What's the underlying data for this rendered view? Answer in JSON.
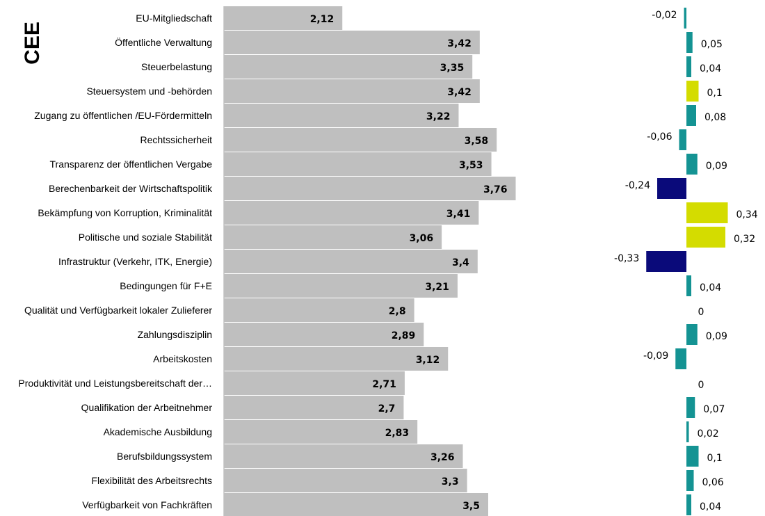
{
  "side_title": "CEE",
  "chart_data": [
    {
      "type": "bar",
      "orientation": "horizontal",
      "categories": [
        "EU-Mitgliedschaft",
        "Öffentliche Verwaltung",
        "Steuerbelastung",
        "Steuersystem und -behörden",
        "Zugang zu öffentlichen /EU-Fördermitteln",
        "Rechtssicherheit",
        "Transparenz der öffentlichen Vergabe",
        "Berechenbarkeit der Wirtschaftspolitik",
        "Bekämpfung von Korruption, Kriminalität",
        "Politische und soziale Stabilität",
        "Infrastruktur (Verkehr, ITK, Energie)",
        "Bedingungen für F+E",
        "Qualität und Verfügbarkeit lokaler Zulieferer",
        "Zahlungsdisziplin",
        "Arbeitskosten",
        "Produktivität und Leistungsbereitschaft der…",
        "Qualifikation der Arbeitnehmer",
        "Akademische Ausbildung",
        "Berufsbildungssystem",
        "Flexibilität des Arbeitsrechts",
        "Verfügbarkeit von Fachkräften"
      ],
      "values": [
        2.12,
        3.42,
        3.35,
        3.42,
        3.22,
        3.58,
        3.53,
        3.76,
        3.41,
        3.06,
        3.4,
        3.21,
        2.8,
        2.89,
        3.12,
        2.71,
        2.7,
        2.83,
        3.26,
        3.3,
        3.5
      ],
      "value_labels": [
        "2,12",
        "3,42",
        "3,35",
        "3,42",
        "3,22",
        "3,58",
        "3,53",
        "3,76",
        "3,41",
        "3,06",
        "3,4",
        "3,21",
        "2,8",
        "2,89",
        "3,12",
        "2,71",
        "2,7",
        "2,83",
        "3,26",
        "3,3",
        "3,5"
      ],
      "bar_color": "#bfbfbf",
      "xlim": [
        1,
        4
      ],
      "grid": false,
      "legend": "none"
    },
    {
      "type": "bar",
      "orientation": "horizontal",
      "values": [
        -0.02,
        0.05,
        0.04,
        0.1,
        0.08,
        -0.06,
        0.09,
        -0.24,
        0.34,
        0.32,
        -0.33,
        0.04,
        0,
        0.09,
        -0.09,
        0,
        0.07,
        0.02,
        0.1,
        0.06,
        0.04
      ],
      "value_labels": [
        "-0,02",
        "0,05",
        "0,04",
        "0,1",
        "0,08",
        "-0,06",
        "0,09",
        "-0,24",
        "0,34",
        "0,32",
        "-0,33",
        "0,04",
        "0",
        "0,09",
        "-0,09",
        "0",
        "0,07",
        "0,02",
        "0,1",
        "0,06",
        "0,04"
      ],
      "bar_colors": [
        "#149393",
        "#149393",
        "#149393",
        "#d4dc00",
        "#149393",
        "#149393",
        "#149393",
        "#0a0a7a",
        "#d4dc00",
        "#d4dc00",
        "#0a0a7a",
        "#149393",
        "#149393",
        "#149393",
        "#149393",
        "#149393",
        "#149393",
        "#149393",
        "#149393",
        "#149393",
        "#149393"
      ],
      "grid": false,
      "legend": "none"
    }
  ]
}
